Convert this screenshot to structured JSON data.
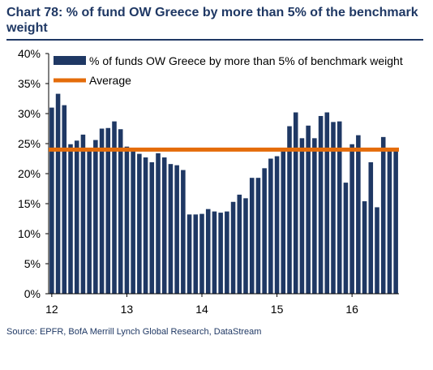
{
  "title": "Chart 78: % of fund OW Greece by more than 5% of the benchmark weight",
  "source": "Source: EPFR, BofA Merrill Lynch Global Research, DataStream",
  "colors": {
    "bar": "#1f3864",
    "average": "#e46c0a",
    "title": "#1f3864"
  },
  "chart_data": {
    "type": "bar",
    "ylim": [
      0,
      40
    ],
    "y_ticks": [
      "0%",
      "5%",
      "10%",
      "15%",
      "20%",
      "25%",
      "30%",
      "35%",
      "40%"
    ],
    "x_tick_labels": [
      "12",
      "13",
      "14",
      "15",
      "16"
    ],
    "x_tick_bar_index": [
      0,
      12,
      24,
      36,
      48
    ],
    "grid": false,
    "legend_position": "top-left",
    "series": [
      {
        "name": "% of funds OW Greece by more than 5% of benchmark weight",
        "values": [
          31.0,
          33.3,
          31.4,
          24.9,
          25.5,
          26.5,
          24.3,
          25.6,
          27.5,
          27.6,
          28.7,
          27.4,
          24.5,
          23.9,
          23.3,
          22.7,
          21.9,
          23.4,
          22.7,
          21.6,
          21.4,
          20.6,
          13.2,
          13.2,
          13.3,
          14.1,
          13.7,
          13.5,
          13.7,
          15.3,
          16.5,
          15.9,
          19.3,
          19.3,
          20.9,
          22.5,
          22.9,
          24.2,
          27.9,
          30.2,
          25.9,
          28.0,
          25.9,
          29.6,
          30.2,
          28.6,
          28.7,
          18.5,
          24.9,
          26.4,
          15.4,
          21.9,
          14.4,
          26.1,
          24.2,
          24.2
        ]
      },
      {
        "name": "Average",
        "type": "line",
        "value": 24.0
      }
    ]
  }
}
